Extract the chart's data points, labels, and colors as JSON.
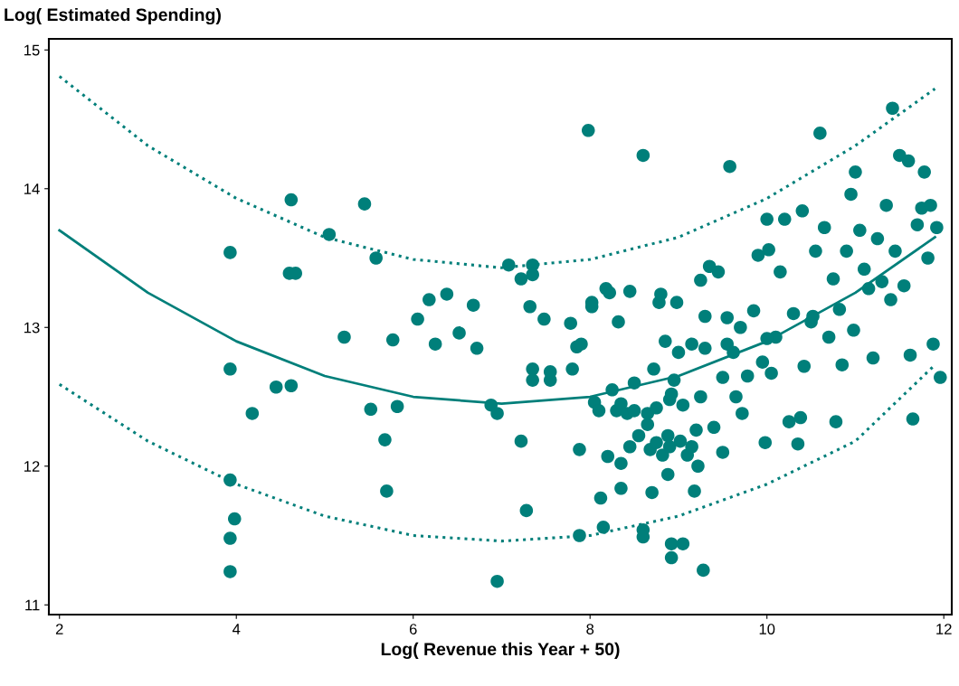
{
  "chart_data": {
    "type": "scatter",
    "ylabel": "Log( Estimated Spending)",
    "xlabel": "Log( Revenue this Year + 50)",
    "xlim": [
      1.88,
      12.09
    ],
    "ylim": [
      10.93,
      15.08
    ],
    "xticks": [
      2,
      4,
      6,
      8,
      10,
      12
    ],
    "yticks": [
      11,
      12,
      13,
      14,
      15
    ],
    "grid": false,
    "series": [
      {
        "color": "#007f7a",
        "marker": "circle",
        "x": [
          3.93,
          3.93,
          3.93,
          3.93,
          3.93,
          3.98,
          4.18,
          4.45,
          4.62,
          4.6,
          4.67,
          4.62,
          5.05,
          5.22,
          5.45,
          5.52,
          5.58,
          5.68,
          5.7,
          5.77,
          5.82,
          6.05,
          6.18,
          6.25,
          6.38,
          6.52,
          6.68,
          6.72,
          6.88,
          6.95,
          6.95,
          7.08,
          7.22,
          7.22,
          7.28,
          7.32,
          7.35,
          7.35,
          7.35,
          7.35,
          7.48,
          7.55,
          7.55,
          7.78,
          7.8,
          7.85,
          7.9,
          7.88,
          7.88,
          7.98,
          8.02,
          8.02,
          8.05,
          8.1,
          8.12,
          8.15,
          8.18,
          8.2,
          8.22,
          8.25,
          8.3,
          8.32,
          8.35,
          8.35,
          8.35,
          8.45,
          8.42,
          8.45,
          8.5,
          8.5,
          8.55,
          8.6,
          8.6,
          8.6,
          8.65,
          8.65,
          8.68,
          8.7,
          8.72,
          8.75,
          8.75,
          8.78,
          8.8,
          8.82,
          8.85,
          8.88,
          8.88,
          8.9,
          8.9,
          8.92,
          8.92,
          8.92,
          8.95,
          8.98,
          9.0,
          9.02,
          9.05,
          9.05,
          9.1,
          9.15,
          9.15,
          9.18,
          9.2,
          9.22,
          9.25,
          9.25,
          9.28,
          9.3,
          9.35,
          9.4,
          9.45,
          9.5,
          9.5,
          9.55,
          9.55,
          9.58,
          9.62,
          9.65,
          9.7,
          9.72,
          9.78,
          9.85,
          9.9,
          9.95,
          9.98,
          10.0,
          10.02,
          10.05,
          10.1,
          10.15,
          10.2,
          10.25,
          10.3,
          10.35,
          10.38,
          10.4,
          10.42,
          10.5,
          10.52,
          10.55,
          10.6,
          10.65,
          10.7,
          10.75,
          10.78,
          10.82,
          10.85,
          10.9,
          10.95,
          10.98,
          11.0,
          11.05,
          11.1,
          11.15,
          11.2,
          11.25,
          11.3,
          11.35,
          11.4,
          11.42,
          11.45,
          11.5,
          11.55,
          11.6,
          11.62,
          11.65,
          11.7,
          11.75,
          11.78,
          11.82,
          11.85,
          11.88,
          11.92,
          11.96,
          10.0,
          9.3
        ],
        "values": [
          13.54,
          12.7,
          11.9,
          11.48,
          11.24,
          11.62,
          12.38,
          12.57,
          12.58,
          13.39,
          13.39,
          13.92,
          13.67,
          12.93,
          13.89,
          12.41,
          13.5,
          12.19,
          11.82,
          12.91,
          12.43,
          13.06,
          13.2,
          12.88,
          13.24,
          12.96,
          13.16,
          12.85,
          12.44,
          11.17,
          12.38,
          13.45,
          13.35,
          12.18,
          11.68,
          13.15,
          13.45,
          13.38,
          12.7,
          12.62,
          13.06,
          12.62,
          12.68,
          13.03,
          12.7,
          12.86,
          12.88,
          12.12,
          11.5,
          14.42,
          13.18,
          13.15,
          12.46,
          12.4,
          11.77,
          11.56,
          13.28,
          12.07,
          13.25,
          12.55,
          12.4,
          13.04,
          12.45,
          12.02,
          11.84,
          13.26,
          12.38,
          12.14,
          12.4,
          12.6,
          12.22,
          11.54,
          11.49,
          14.24,
          12.3,
          12.38,
          12.12,
          11.81,
          12.7,
          12.17,
          12.42,
          13.18,
          13.24,
          12.08,
          12.9,
          11.94,
          12.22,
          12.48,
          12.14,
          12.52,
          11.34,
          11.44,
          12.62,
          13.18,
          12.82,
          12.18,
          11.44,
          12.44,
          12.08,
          12.88,
          12.14,
          11.82,
          12.26,
          12.0,
          12.5,
          13.34,
          11.25,
          13.08,
          13.44,
          12.28,
          13.4,
          12.64,
          12.1,
          12.88,
          13.07,
          14.16,
          12.82,
          12.5,
          13.0,
          12.38,
          12.65,
          13.12,
          13.52,
          12.75,
          12.17,
          13.78,
          13.56,
          12.67,
          12.93,
          13.4,
          13.78,
          12.32,
          13.1,
          12.16,
          12.35,
          13.84,
          12.72,
          13.04,
          13.08,
          13.55,
          14.4,
          13.72,
          12.93,
          13.35,
          12.32,
          13.13,
          12.73,
          13.55,
          13.96,
          12.98,
          14.12,
          13.7,
          13.42,
          13.28,
          12.78,
          13.64,
          13.33,
          13.88,
          13.2,
          14.58,
          13.55,
          14.24,
          13.3,
          14.2,
          12.8,
          12.34,
          13.74,
          13.86,
          14.12,
          13.5,
          13.88,
          12.88,
          13.72,
          12.64,
          12.92,
          12.85
        ]
      },
      {
        "type": "line",
        "color": "#007f7a",
        "line_style": "solid",
        "x": [
          2,
          3,
          4,
          5,
          6,
          7,
          8,
          9,
          10,
          11,
          11.9
        ],
        "values": [
          13.7,
          13.25,
          12.9,
          12.65,
          12.5,
          12.45,
          12.5,
          12.65,
          12.9,
          13.25,
          13.65
        ]
      },
      {
        "type": "line",
        "color": "#007f7a",
        "line_style": "dotted",
        "x": [
          2,
          3,
          4,
          5,
          6,
          7,
          8,
          9,
          10,
          11,
          11.9
        ],
        "values": [
          14.81,
          14.31,
          13.93,
          13.65,
          13.49,
          13.43,
          13.49,
          13.65,
          13.93,
          14.31,
          14.72
        ]
      },
      {
        "type": "line",
        "color": "#007f7a",
        "line_style": "dotted",
        "x": [
          2,
          3,
          4,
          5,
          6,
          7,
          8,
          9,
          10,
          11,
          11.9
        ],
        "values": [
          12.59,
          12.18,
          11.87,
          11.64,
          11.5,
          11.46,
          11.5,
          11.64,
          11.87,
          12.18,
          12.73
        ]
      }
    ]
  }
}
